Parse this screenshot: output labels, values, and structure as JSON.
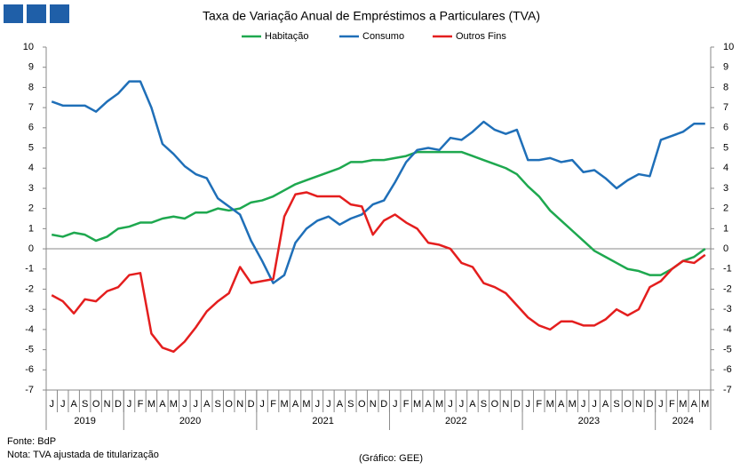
{
  "chart_data": {
    "type": "line",
    "title": "Taxa de Variação Anual de Empréstimos  a Particulares (TVA)",
    "categories": [
      "J",
      "J",
      "A",
      "S",
      "O",
      "N",
      "D",
      "J",
      "F",
      "M",
      "A",
      "M",
      "J",
      "J",
      "A",
      "S",
      "O",
      "N",
      "D",
      "J",
      "F",
      "M",
      "A",
      "M",
      "J",
      "J",
      "A",
      "S",
      "O",
      "N",
      "D",
      "J",
      "F",
      "M",
      "A",
      "M",
      "J",
      "J",
      "A",
      "S",
      "O",
      "N",
      "D",
      "J",
      "F",
      "M",
      "A",
      "M",
      "J",
      "J",
      "A",
      "S",
      "O",
      "N",
      "D",
      "J",
      "F",
      "M",
      "A",
      "M"
    ],
    "year_labels": [
      "2019",
      "2020",
      "2021",
      "2022",
      "2023",
      "2024"
    ],
    "series": [
      {
        "name": "Habitação",
        "color": "#1ea84f",
        "values": [
          0.7,
          0.6,
          0.8,
          0.7,
          0.4,
          0.6,
          1.0,
          1.1,
          1.3,
          1.3,
          1.5,
          1.6,
          1.5,
          1.8,
          1.8,
          2.0,
          1.9,
          2.0,
          2.3,
          2.4,
          2.6,
          2.9,
          3.2,
          3.4,
          3.6,
          3.8,
          4.0,
          4.3,
          4.3,
          4.4,
          4.4,
          4.5,
          4.6,
          4.8,
          4.8,
          4.8,
          4.8,
          4.8,
          4.6,
          4.4,
          4.2,
          4.0,
          3.7,
          3.1,
          2.6,
          1.9,
          1.4,
          0.9,
          0.4,
          -0.1,
          -0.4,
          -0.7,
          -1.0,
          -1.1,
          -1.3,
          -1.3,
          -1.0,
          -0.6,
          -0.4,
          0.0
        ]
      },
      {
        "name": "Consumo",
        "color": "#1f6fb8",
        "values": [
          7.3,
          7.1,
          7.1,
          7.1,
          6.8,
          7.3,
          7.7,
          8.3,
          8.3,
          7.0,
          5.2,
          4.7,
          4.1,
          3.7,
          3.5,
          2.5,
          2.1,
          1.7,
          0.4,
          -0.6,
          -1.7,
          -1.3,
          0.3,
          1.0,
          1.4,
          1.6,
          1.2,
          1.5,
          1.7,
          2.2,
          2.4,
          3.3,
          4.3,
          4.9,
          5.0,
          4.9,
          5.5,
          5.4,
          5.8,
          6.3,
          5.9,
          5.7,
          5.9,
          4.4,
          4.4,
          4.5,
          4.3,
          4.4,
          3.8,
          3.9,
          3.5,
          3.0,
          3.4,
          3.7,
          3.6,
          5.4,
          5.6,
          5.8,
          6.2,
          6.2
        ]
      },
      {
        "name": "Outros Fins",
        "color": "#e41e1e",
        "values": [
          -2.3,
          -2.6,
          -3.2,
          -2.5,
          -2.6,
          -2.1,
          -1.9,
          -1.3,
          -1.2,
          -4.2,
          -4.9,
          -5.1,
          -4.6,
          -3.9,
          -3.1,
          -2.6,
          -2.2,
          -0.9,
          -1.7,
          -1.6,
          -1.5,
          1.6,
          2.7,
          2.8,
          2.6,
          2.6,
          2.6,
          2.2,
          2.1,
          0.7,
          1.4,
          1.7,
          1.3,
          1.0,
          0.3,
          0.2,
          0.0,
          -0.7,
          -0.9,
          -1.7,
          -1.9,
          -2.2,
          -2.8,
          -3.4,
          -3.8,
          -4.0,
          -3.6,
          -3.6,
          -3.8,
          -3.8,
          -3.5,
          -3.0,
          -3.3,
          -3.0,
          -1.9,
          -1.6,
          -1.0,
          -0.6,
          -0.7,
          -0.3
        ]
      }
    ],
    "ylim": [
      -7,
      10
    ],
    "yticks": [
      -7,
      -6,
      -5,
      -4,
      -3,
      -2,
      -1,
      0,
      1,
      2,
      3,
      4,
      5,
      6,
      7,
      8,
      9,
      10
    ],
    "y2lim": [
      -7,
      10
    ],
    "y2ticks": [
      -7,
      -6,
      -5,
      -4,
      -3,
      -2,
      -1,
      0,
      1,
      2,
      3,
      4,
      5,
      6,
      7,
      8,
      9,
      10
    ],
    "grid": false,
    "source": "Fonte: BdP",
    "note": "Nota: TVA  ajustada de titularização",
    "credit": "(Gráfico: GEE)"
  }
}
